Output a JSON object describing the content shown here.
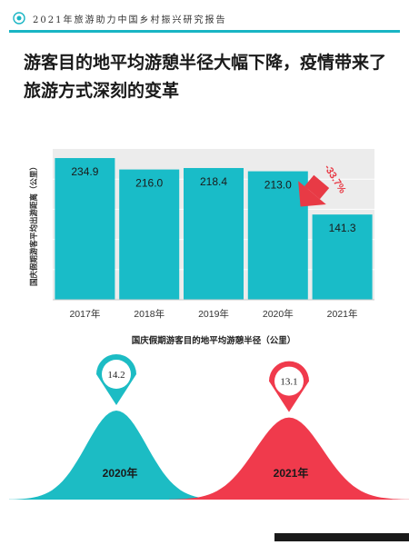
{
  "header": {
    "title": "2021年旅游助力中国乡村振兴研究报告",
    "accent_color": "#19b5c4"
  },
  "headline": {
    "line1": "游客目的地平均游憩半径大幅下降，疫情带来了",
    "line2": "旅游方式深刻的变革"
  },
  "chart_data": [
    {
      "type": "bar",
      "categories": [
        "2017年",
        "2018年",
        "2019年",
        "2020年",
        "2021年"
      ],
      "values": [
        234.9,
        216.0,
        218.4,
        213.0,
        141.3
      ],
      "value_labels": [
        "234.9",
        "216.0",
        "218.4",
        "213.0",
        "141.3"
      ],
      "ylabel": "国庆假期游客平均出游距离（公里）",
      "xlabel": "国庆假期游客目的地平均游憩半径（公里）",
      "ylim": [
        0,
        250
      ],
      "grid": true,
      "bar_color": "#19bcc8",
      "annotation": {
        "text": "-33.7%",
        "color": "#e83a45",
        "target": "2021年"
      }
    },
    {
      "type": "area",
      "series": [
        {
          "name": "2020年",
          "value": 14.2,
          "value_label": "14.2",
          "color": "#1cbcc4"
        },
        {
          "name": "2021年",
          "value": 13.1,
          "value_label": "13.1",
          "color": "#f03a4c"
        }
      ]
    }
  ]
}
